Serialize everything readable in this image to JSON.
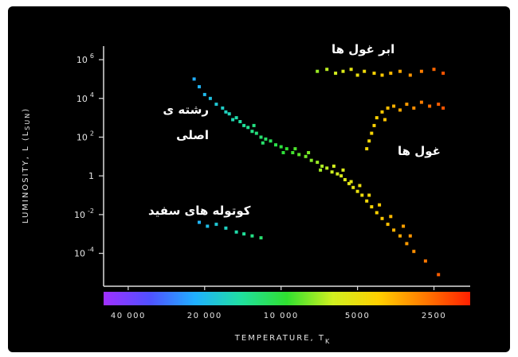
{
  "chart_data": {
    "type": "scatter",
    "title": "",
    "xlabel": "TEMPERATURE, T",
    "xlabel_sub": "K",
    "ylabel": "LUMINOSITY, L (L",
    "ylabel_sub": "SUN",
    "ylabel_end": ")",
    "x_ticks": [
      {
        "label": "40 000",
        "value": 40000
      },
      {
        "label": "20 000",
        "value": 20000
      },
      {
        "label": "10 000",
        "value": 10000
      },
      {
        "label": "5000",
        "value": 5000
      },
      {
        "label": "2500",
        "value": 2500
      }
    ],
    "y_ticks": [
      {
        "base": "10",
        "exp": "6",
        "value": 6
      },
      {
        "base": "10",
        "exp": "4",
        "value": 4
      },
      {
        "base": "10",
        "exp": "2",
        "value": 2
      },
      {
        "base": "1",
        "exp": "",
        "value": 0
      },
      {
        "base": "10",
        "exp": "-2",
        "value": -2
      },
      {
        "base": "10",
        "exp": "-4",
        "value": -4
      }
    ],
    "xlim_temperature_K": [
      50000,
      1800
    ],
    "x_scale": "log, reversed",
    "ylim_log10_luminosity": [
      -5.7,
      6.7
    ],
    "grid": false,
    "series": [
      {
        "name": "رشته ی اصلی",
        "points": [
          {
            "t": 22000,
            "logL": 5.0
          },
          {
            "t": 21000,
            "logL": 4.6
          },
          {
            "t": 20000,
            "logL": 4.2
          },
          {
            "t": 19000,
            "logL": 4.0
          },
          {
            "t": 18000,
            "logL": 3.7
          },
          {
            "t": 17000,
            "logL": 3.5
          },
          {
            "t": 16500,
            "logL": 3.3
          },
          {
            "t": 16000,
            "logL": 3.2
          },
          {
            "t": 15000,
            "logL": 3.0
          },
          {
            "t": 14500,
            "logL": 2.8
          },
          {
            "t": 14000,
            "logL": 2.6
          },
          {
            "t": 13500,
            "logL": 2.5
          },
          {
            "t": 13000,
            "logL": 2.3
          },
          {
            "t": 12500,
            "logL": 2.2
          },
          {
            "t": 12000,
            "logL": 2.0
          },
          {
            "t": 11500,
            "logL": 1.9
          },
          {
            "t": 11000,
            "logL": 1.8
          },
          {
            "t": 10500,
            "logL": 1.6
          },
          {
            "t": 10000,
            "logL": 1.5
          },
          {
            "t": 9500,
            "logL": 1.4
          },
          {
            "t": 9000,
            "logL": 1.2
          },
          {
            "t": 8500,
            "logL": 1.1
          },
          {
            "t": 8000,
            "logL": 1.0
          },
          {
            "t": 7600,
            "logL": 0.8
          },
          {
            "t": 7200,
            "logL": 0.7
          },
          {
            "t": 6900,
            "logL": 0.5
          },
          {
            "t": 6600,
            "logL": 0.4
          },
          {
            "t": 6300,
            "logL": 0.2
          },
          {
            "t": 6000,
            "logL": 0.1
          },
          {
            "t": 5800,
            "logL": 0.0
          },
          {
            "t": 5600,
            "logL": -0.2
          },
          {
            "t": 5400,
            "logL": -0.4
          },
          {
            "t": 5200,
            "logL": -0.6
          },
          {
            "t": 5000,
            "logL": -0.8
          },
          {
            "t": 4800,
            "logL": -1.0
          },
          {
            "t": 4600,
            "logL": -1.3
          },
          {
            "t": 4400,
            "logL": -1.6
          },
          {
            "t": 4200,
            "logL": -1.9
          },
          {
            "t": 4000,
            "logL": -2.2
          },
          {
            "t": 3800,
            "logL": -2.5
          },
          {
            "t": 3600,
            "logL": -2.8
          },
          {
            "t": 3400,
            "logL": -3.1
          },
          {
            "t": 3200,
            "logL": -3.5
          },
          {
            "t": 3000,
            "logL": -3.9
          },
          {
            "t": 2700,
            "logL": -4.4
          },
          {
            "t": 2400,
            "logL": -5.1
          },
          {
            "t": 15500,
            "logL": 2.9
          },
          {
            "t": 12800,
            "logL": 2.6
          },
          {
            "t": 11800,
            "logL": 1.7
          },
          {
            "t": 9800,
            "logL": 1.2
          },
          {
            "t": 8800,
            "logL": 1.4
          },
          {
            "t": 7800,
            "logL": 1.2
          },
          {
            "t": 7000,
            "logL": 0.3
          },
          {
            "t": 6200,
            "logL": 0.5
          },
          {
            "t": 5700,
            "logL": 0.3
          },
          {
            "t": 5300,
            "logL": -0.3
          },
          {
            "t": 4900,
            "logL": -0.5
          },
          {
            "t": 4500,
            "logL": -1.0
          },
          {
            "t": 4100,
            "logL": -1.5
          },
          {
            "t": 3700,
            "logL": -2.1
          },
          {
            "t": 3300,
            "logL": -2.6
          },
          {
            "t": 3100,
            "logL": -3.1
          }
        ]
      },
      {
        "name": "ابر غول ها",
        "points": [
          {
            "t": 7200,
            "logL": 5.4
          },
          {
            "t": 6600,
            "logL": 5.5
          },
          {
            "t": 6100,
            "logL": 5.3
          },
          {
            "t": 5700,
            "logL": 5.4
          },
          {
            "t": 5300,
            "logL": 5.5
          },
          {
            "t": 5000,
            "logL": 5.2
          },
          {
            "t": 4700,
            "logL": 5.4
          },
          {
            "t": 4300,
            "logL": 5.3
          },
          {
            "t": 4000,
            "logL": 5.2
          },
          {
            "t": 3700,
            "logL": 5.3
          },
          {
            "t": 3400,
            "logL": 5.4
          },
          {
            "t": 3100,
            "logL": 5.2
          },
          {
            "t": 2800,
            "logL": 5.4
          },
          {
            "t": 2500,
            "logL": 5.5
          },
          {
            "t": 2300,
            "logL": 5.3
          }
        ]
      },
      {
        "name": "غول ها",
        "points": [
          {
            "t": 4500,
            "logL": 1.8
          },
          {
            "t": 4400,
            "logL": 2.2
          },
          {
            "t": 4300,
            "logL": 2.6
          },
          {
            "t": 4200,
            "logL": 3.0
          },
          {
            "t": 4000,
            "logL": 3.3
          },
          {
            "t": 3800,
            "logL": 3.5
          },
          {
            "t": 3600,
            "logL": 3.6
          },
          {
            "t": 3400,
            "logL": 3.4
          },
          {
            "t": 3200,
            "logL": 3.7
          },
          {
            "t": 3000,
            "logL": 3.5
          },
          {
            "t": 2800,
            "logL": 3.8
          },
          {
            "t": 2600,
            "logL": 3.6
          },
          {
            "t": 2400,
            "logL": 3.7
          },
          {
            "t": 2300,
            "logL": 3.5
          },
          {
            "t": 4600,
            "logL": 1.4
          },
          {
            "t": 3900,
            "logL": 2.9
          }
        ]
      },
      {
        "name": "کوتوله های سفید",
        "points": [
          {
            "t": 21000,
            "logL": -2.4
          },
          {
            "t": 19500,
            "logL": -2.6
          },
          {
            "t": 18000,
            "logL": -2.5
          },
          {
            "t": 16500,
            "logL": -2.7
          },
          {
            "t": 15000,
            "logL": -2.9
          },
          {
            "t": 14000,
            "logL": -3.0
          },
          {
            "t": 13000,
            "logL": -3.1
          },
          {
            "t": 12000,
            "logL": -3.2
          }
        ]
      }
    ]
  },
  "colors": {
    "background": "#000000",
    "axis": "#dddddd",
    "colorbar": [
      "#a030ff",
      "#5050ff",
      "#20b0ff",
      "#20e0a0",
      "#30e030",
      "#d0f020",
      "#ffd000",
      "#ff7a00",
      "#ff2000"
    ]
  }
}
